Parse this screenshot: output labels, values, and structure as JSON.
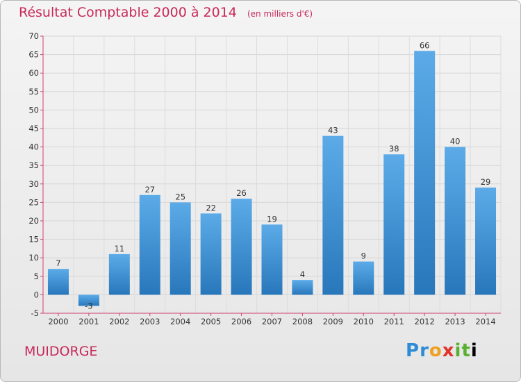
{
  "title": "Résultat Comptable 2000 à 2014",
  "subtitle": "(en milliers d'€)",
  "commune": "MUIDORGE",
  "logo": {
    "letters": [
      "P",
      "r",
      "o",
      "x",
      "i",
      "t",
      "i"
    ]
  },
  "colors": {
    "title": "#c8285a",
    "bar_light": "#5aa8e6",
    "bar_dark": "#2a7bc0",
    "axis": "#d04070"
  },
  "chart_data": {
    "type": "bar",
    "categories": [
      "2000",
      "2001",
      "2002",
      "2003",
      "2004",
      "2005",
      "2006",
      "2007",
      "2008",
      "2009",
      "2010",
      "2011",
      "2012",
      "2013",
      "2014"
    ],
    "values": [
      7,
      -3,
      11,
      27,
      25,
      22,
      26,
      19,
      4,
      43,
      9,
      38,
      66,
      40,
      29
    ],
    "ylim": [
      -5,
      70
    ],
    "yticks": [
      -5,
      0,
      5,
      10,
      15,
      20,
      25,
      30,
      35,
      40,
      45,
      50,
      55,
      60,
      65,
      70
    ],
    "grid": true,
    "xlabel": "",
    "ylabel": ""
  }
}
